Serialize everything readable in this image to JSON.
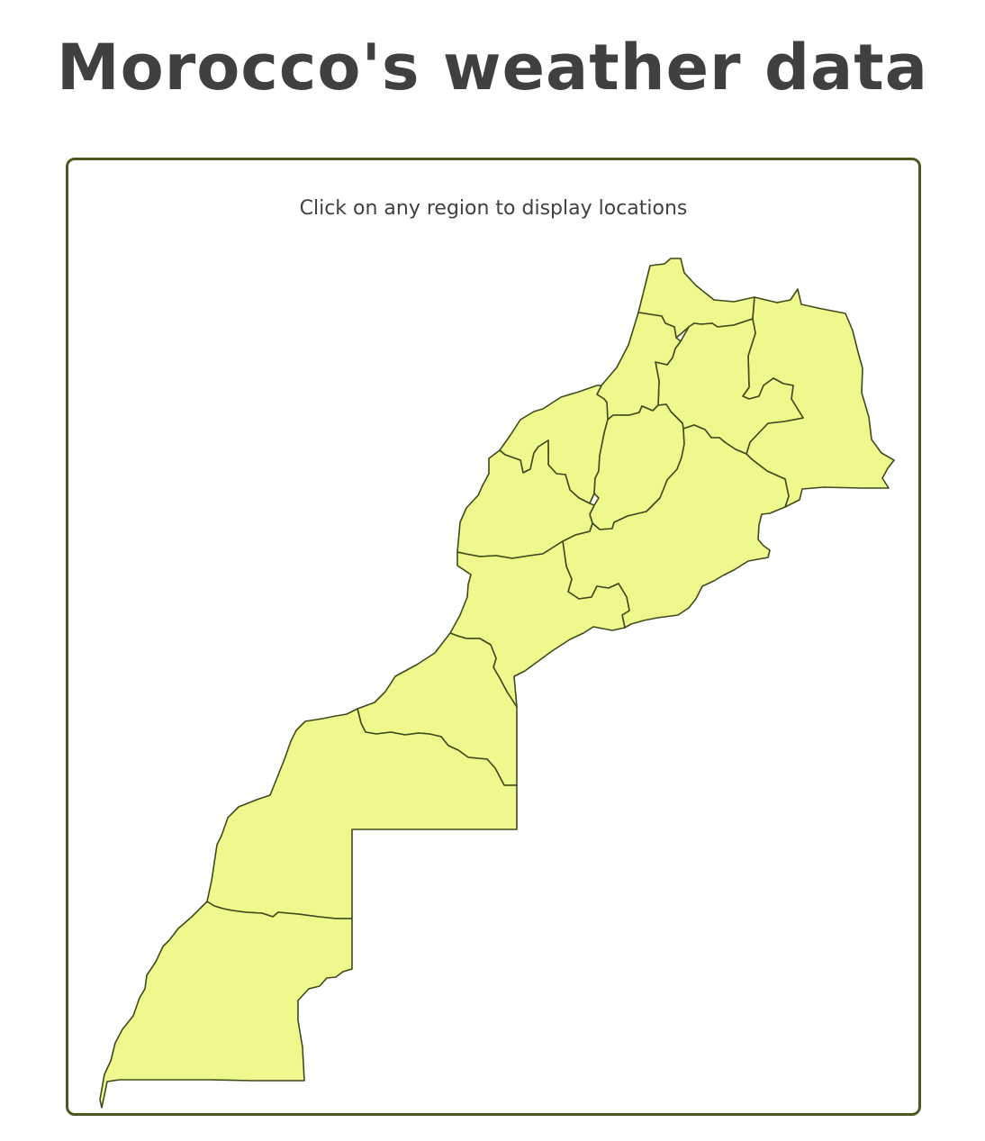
{
  "title": "Morocco's weather data",
  "map": {
    "instruction": "Click on any region to display locations",
    "colors": {
      "region_fill": "#eef88d",
      "region_stroke": "#3f4a1c",
      "frame_border": "#4a5a1e",
      "text": "#404040"
    }
  }
}
